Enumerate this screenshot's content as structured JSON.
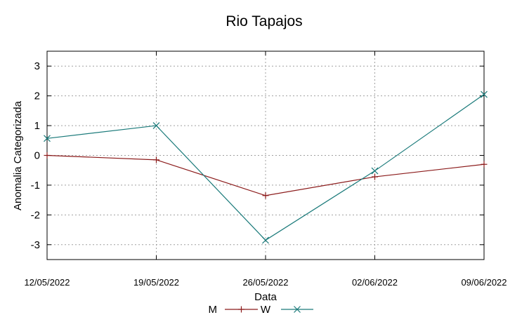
{
  "chart_data": {
    "type": "line",
    "title": "Rio Tapajos",
    "xlabel": "Data",
    "ylabel": "Anomalia Categorizada",
    "categories": [
      "12/05/2022",
      "19/05/2022",
      "26/05/2022",
      "02/06/2022",
      "09/06/2022"
    ],
    "ylim": [
      -3.5,
      3.5
    ],
    "yticks": [
      "3",
      "2",
      "1",
      "0",
      "-1",
      "-2",
      "-3"
    ],
    "ytick_values": [
      3,
      2,
      1,
      0,
      -1,
      -2,
      -3
    ],
    "grid": true,
    "legend_position": "bottom-center",
    "series": [
      {
        "name": "M",
        "color": "#8b1a1a",
        "marker": "plus",
        "values": [
          0,
          -0.15,
          -1.35,
          -0.72,
          -0.3
        ]
      },
      {
        "name": "W",
        "color": "#1a7a7a",
        "marker": "cross",
        "values": [
          0.57,
          1.0,
          -2.85,
          -0.52,
          2.05
        ]
      }
    ]
  }
}
